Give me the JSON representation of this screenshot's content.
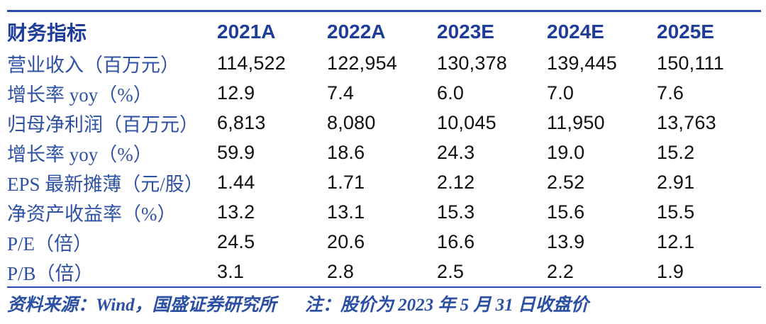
{
  "table": {
    "header": {
      "label": "财务指标",
      "years": [
        "2021A",
        "2022A",
        "2023E",
        "2024E",
        "2025E"
      ]
    },
    "rows": [
      {
        "label": "营业收入（百万元）",
        "values": [
          "114,522",
          "122,954",
          "130,378",
          "139,445",
          "150,111"
        ]
      },
      {
        "label": "增长率 yoy（%）",
        "values": [
          "12.9",
          "7.4",
          "6.0",
          "7.0",
          "7.6"
        ]
      },
      {
        "label": "归母净利润（百万元）",
        "values": [
          "6,813",
          "8,080",
          "10,045",
          "11,950",
          "13,763"
        ]
      },
      {
        "label": "增长率 yoy（%）",
        "values": [
          "59.9",
          "18.6",
          "24.3",
          "19.0",
          "15.2"
        ]
      },
      {
        "label": "EPS 最新摊薄（元/股）",
        "values": [
          "1.44",
          "1.71",
          "2.12",
          "2.52",
          "2.91"
        ]
      },
      {
        "label": "净资产收益率（%）",
        "values": [
          "13.2",
          "13.1",
          "15.3",
          "15.6",
          "15.5"
        ]
      },
      {
        "label": "P/E（倍）",
        "values": [
          "24.5",
          "20.6",
          "16.6",
          "13.9",
          "12.1"
        ]
      },
      {
        "label": "P/B（倍）",
        "values": [
          "3.1",
          "2.8",
          "2.5",
          "2.2",
          "1.9"
        ]
      }
    ],
    "footnote": {
      "source": "资料来源：Wind，国盛证券研究所",
      "note": "注：股价为 2023 年 5 月 31 日收盘价"
    }
  },
  "colors": {
    "rule_blue": "#2b4ab0",
    "header_blue": "#1e3c99",
    "label_blue": "#2e51a4",
    "footnote_blue": "#2b4fa2",
    "number_black": "#111111"
  }
}
